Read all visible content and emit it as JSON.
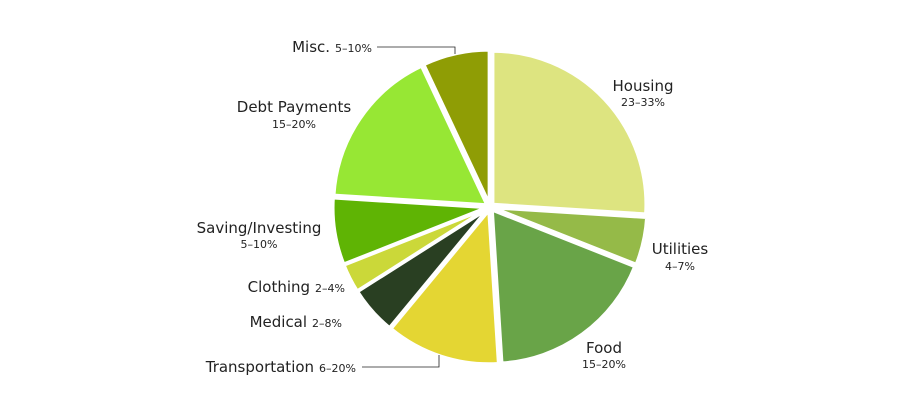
{
  "chart_data": {
    "type": "pie",
    "slices": [
      {
        "name": "Housing",
        "range": "23–33%",
        "value": 26,
        "color": "#dde480"
      },
      {
        "name": "Utilities",
        "range": "4–7%",
        "value": 5,
        "color": "#95ba48"
      },
      {
        "name": "Food",
        "range": "15–20%",
        "value": 18,
        "color": "#69a448"
      },
      {
        "name": "Transportation",
        "range": "6–20%",
        "value": 12,
        "color": "#e4d633"
      },
      {
        "name": "Medical",
        "range": "2–8%",
        "value": 5,
        "color": "#293f22"
      },
      {
        "name": "Clothing",
        "range": "2–4%",
        "value": 3,
        "color": "#cbd839"
      },
      {
        "name": "Saving/Investing",
        "range": "5–10%",
        "value": 7,
        "color": "#5fb404"
      },
      {
        "name": "Debt Payments",
        "range": "15–20%",
        "value": 17,
        "color": "#97e734"
      },
      {
        "name": "Misc.",
        "range": "5–10%",
        "value": 7,
        "color": "#8f9d05"
      }
    ]
  }
}
